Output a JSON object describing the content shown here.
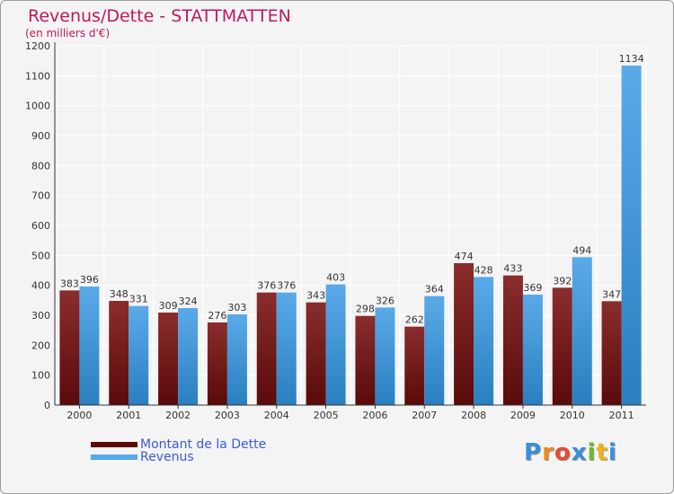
{
  "header": {
    "title": "Revenus/Dette - STATTMATTEN",
    "subtitle": "(en milliers d'€)"
  },
  "colors": {
    "dette_top": "#8a2d2d",
    "dette_bottom": "#5a0a0a",
    "revenus_top": "#5aaae8",
    "revenus_bottom": "#2a7fc0",
    "title": "#c0185a",
    "legend_text": "#3b5bd6"
  },
  "chart_data": {
    "type": "bar",
    "title": "Revenus/Dette - STATTMATTEN",
    "subtitle": "(en milliers d'€)",
    "categories": [
      "2000",
      "2001",
      "2002",
      "2003",
      "2004",
      "2005",
      "2006",
      "2007",
      "2008",
      "2009",
      "2010",
      "2011"
    ],
    "series": [
      {
        "name": "Montant de la Dette",
        "values": [
          383,
          348,
          309,
          276,
          376,
          343,
          298,
          262,
          474,
          433,
          392,
          347
        ]
      },
      {
        "name": "Revenus",
        "values": [
          396,
          331,
          324,
          303,
          376,
          403,
          326,
          364,
          428,
          369,
          494,
          1134
        ]
      }
    ],
    "ylim": [
      0,
      1200
    ],
    "yticks": [
      0,
      100,
      200,
      300,
      400,
      500,
      600,
      700,
      800,
      900,
      1000,
      1100,
      1200
    ],
    "grid": true,
    "legend": "bottom-left"
  },
  "legend": {
    "dette_label": "Montant de la Dette",
    "revenus_label": "Revenus"
  },
  "logo": {
    "text": "Proxiti",
    "letters": [
      "P",
      "r",
      "o",
      "x",
      "i",
      "t",
      "i"
    ],
    "letter_colors": [
      "#3a8fd8",
      "#f08a1c",
      "#e84c2c",
      "#3a8fd8",
      "#6cbb2a",
      "#f0b21c",
      "#3a8fd8"
    ]
  }
}
